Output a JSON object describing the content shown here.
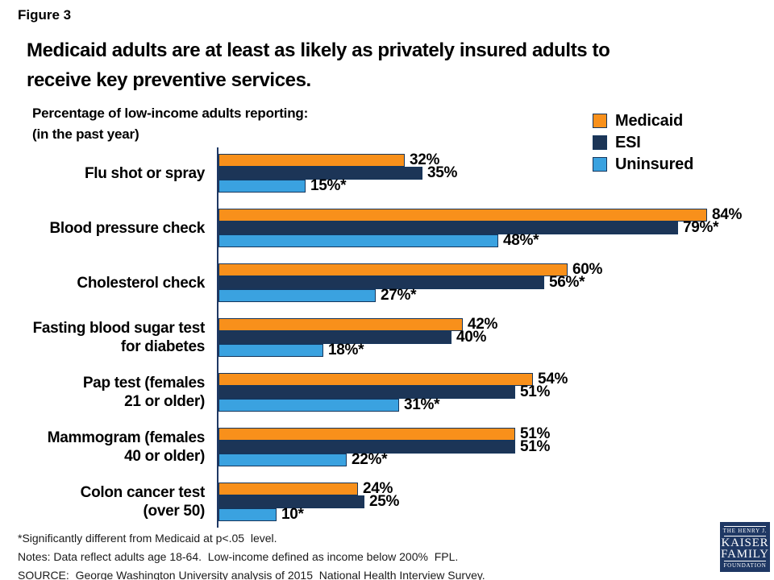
{
  "figure_label": "Figure 3",
  "title_line1": "Medicaid adults are at least as likely as privately insured adults to",
  "title_line2": "receive key preventive services.",
  "subtitle_line1": "Percentage of low-income adults reporting:",
  "subtitle_line2": "(in the past year)",
  "legend": {
    "items": [
      {
        "label": "Medicaid",
        "color": "#F8901B"
      },
      {
        "label": "ESI",
        "color": "#1C3557"
      },
      {
        "label": "Uninsured",
        "color": "#3AA2E0"
      }
    ]
  },
  "chart_data": {
    "type": "bar",
    "orientation": "horizontal",
    "title": "Medicaid adults are at least as likely as privately insured adults to receive key preventive services.",
    "subtitle": "Percentage of low-income adults reporting: (in the past year)",
    "unit": "%",
    "xlim": [
      0,
      100
    ],
    "grid": false,
    "legend_position": "top-right",
    "categories": [
      "Flu shot or spray",
      "Blood pressure check",
      "Cholesterol check",
      "Fasting blood sugar test for diabetes",
      "Pap test (females 21 or older)",
      "Mammogram (females 40 or older)",
      "Colon cancer test (over 50)"
    ],
    "category_lines": [
      [
        "Flu shot or spray"
      ],
      [
        "Blood pressure check"
      ],
      [
        "Cholesterol check"
      ],
      [
        "Fasting blood sugar test",
        "for diabetes"
      ],
      [
        "Pap test (females",
        "21 or older)"
      ],
      [
        "Mammogram (females",
        "40 or older)"
      ],
      [
        "Colon cancer test",
        "(over 50)"
      ]
    ],
    "series": [
      {
        "name": "Medicaid",
        "color": "#F8901B",
        "values": [
          32,
          84,
          60,
          42,
          54,
          51,
          24
        ],
        "labels": [
          "32%",
          "84%",
          "60%",
          "42%",
          "54%",
          "51%",
          "24%"
        ]
      },
      {
        "name": "ESI",
        "color": "#1C3557",
        "values": [
          35,
          79,
          56,
          40,
          51,
          51,
          25
        ],
        "labels": [
          "35%",
          "79%*",
          "56%*",
          "40%",
          "51%",
          "51%",
          "25%"
        ]
      },
      {
        "name": "Uninsured",
        "color": "#3AA2E0",
        "values": [
          15,
          48,
          27,
          18,
          31,
          22,
          10
        ],
        "labels": [
          "15%*",
          "48%*",
          "27%*",
          "18%*",
          "31%*",
          "22%*",
          "10*"
        ]
      }
    ]
  },
  "footnotes": {
    "line1": "*Significantly different from Medicaid at p<.05  level.",
    "line2": "Notes: Data reflect adults age 18-64.  Low-income defined as income below 200%  FPL.",
    "line3": "SOURCE:  George Washington University analysis of 2015  National Health Interview Survey."
  },
  "logo": {
    "top": "THE HENRY J.",
    "line1": "KAISER",
    "line2": "FAMILY",
    "bottom": "FOUNDATION",
    "color": "#1F3864"
  }
}
